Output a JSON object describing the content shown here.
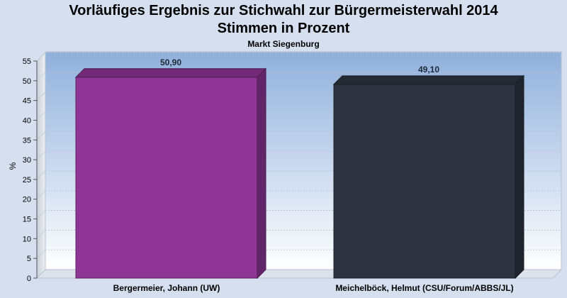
{
  "chart_data": {
    "type": "bar",
    "title": "Vorläufiges Ergebnis zur Stichwahl zur Bürgermeisterwahl 2014",
    "subtitle_line": "Stimmen in Prozent",
    "location": "Markt Siegenburg",
    "ylabel": "%",
    "ylim": [
      0,
      55
    ],
    "ytick_labels": [
      "0",
      "5",
      "10",
      "15",
      "20",
      "25",
      "30",
      "35",
      "40",
      "45",
      "50",
      "55"
    ],
    "ytick_values": [
      0,
      5,
      10,
      15,
      20,
      25,
      30,
      35,
      40,
      45,
      50,
      55
    ],
    "categories": [
      "Bergermeier, Johann (UW)",
      "Meichelböck, Helmut (CSU/Forum/ABBS/JL)"
    ],
    "values": [
      50.9,
      49.1
    ],
    "value_labels": [
      "50,90",
      "49,10"
    ],
    "colors": [
      "#8e3596",
      "#2d3440"
    ],
    "grid": true,
    "legend": "none"
  }
}
